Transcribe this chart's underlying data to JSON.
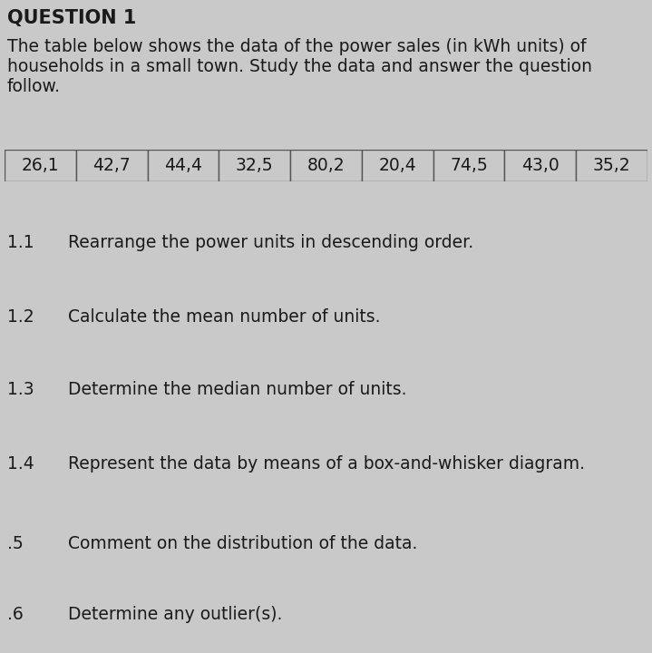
{
  "title": "QUESTION 1",
  "intro_line1": "The table below shows the data of the power sales (in kWh units) of",
  "intro_line2": "households in a small town. Study the data and answer the question",
  "intro_line3": "follow.",
  "table_values": [
    "26,1",
    "42,7",
    "44,4",
    "32,5",
    "80,2",
    "20,4",
    "74,5",
    "43,0",
    "35,2"
  ],
  "questions": [
    {
      "number": "1.1",
      "text": "Rearrange the power units in descending order."
    },
    {
      "number": "1.2",
      "text": "Calculate the mean number of units."
    },
    {
      "number": "1.3",
      "text": "Determine the median number of units."
    },
    {
      "number": "1.4",
      "text": "Represent the data by means of a box-and-whisker diagram."
    },
    {
      "number": ".5",
      "text": "Comment on the distribution of the data."
    },
    {
      "number": ".6",
      "text": "Determine any outlier(s)."
    }
  ],
  "bg_color": "#c9c9c9",
  "text_color": "#1a1a1a",
  "title_fontsize": 15,
  "intro_fontsize": 13.5,
  "table_fontsize": 13.5,
  "question_fontsize": 13.5,
  "number_fontsize": 13.5,
  "fig_width": 7.19,
  "fig_height": 7.2,
  "dpi": 100
}
